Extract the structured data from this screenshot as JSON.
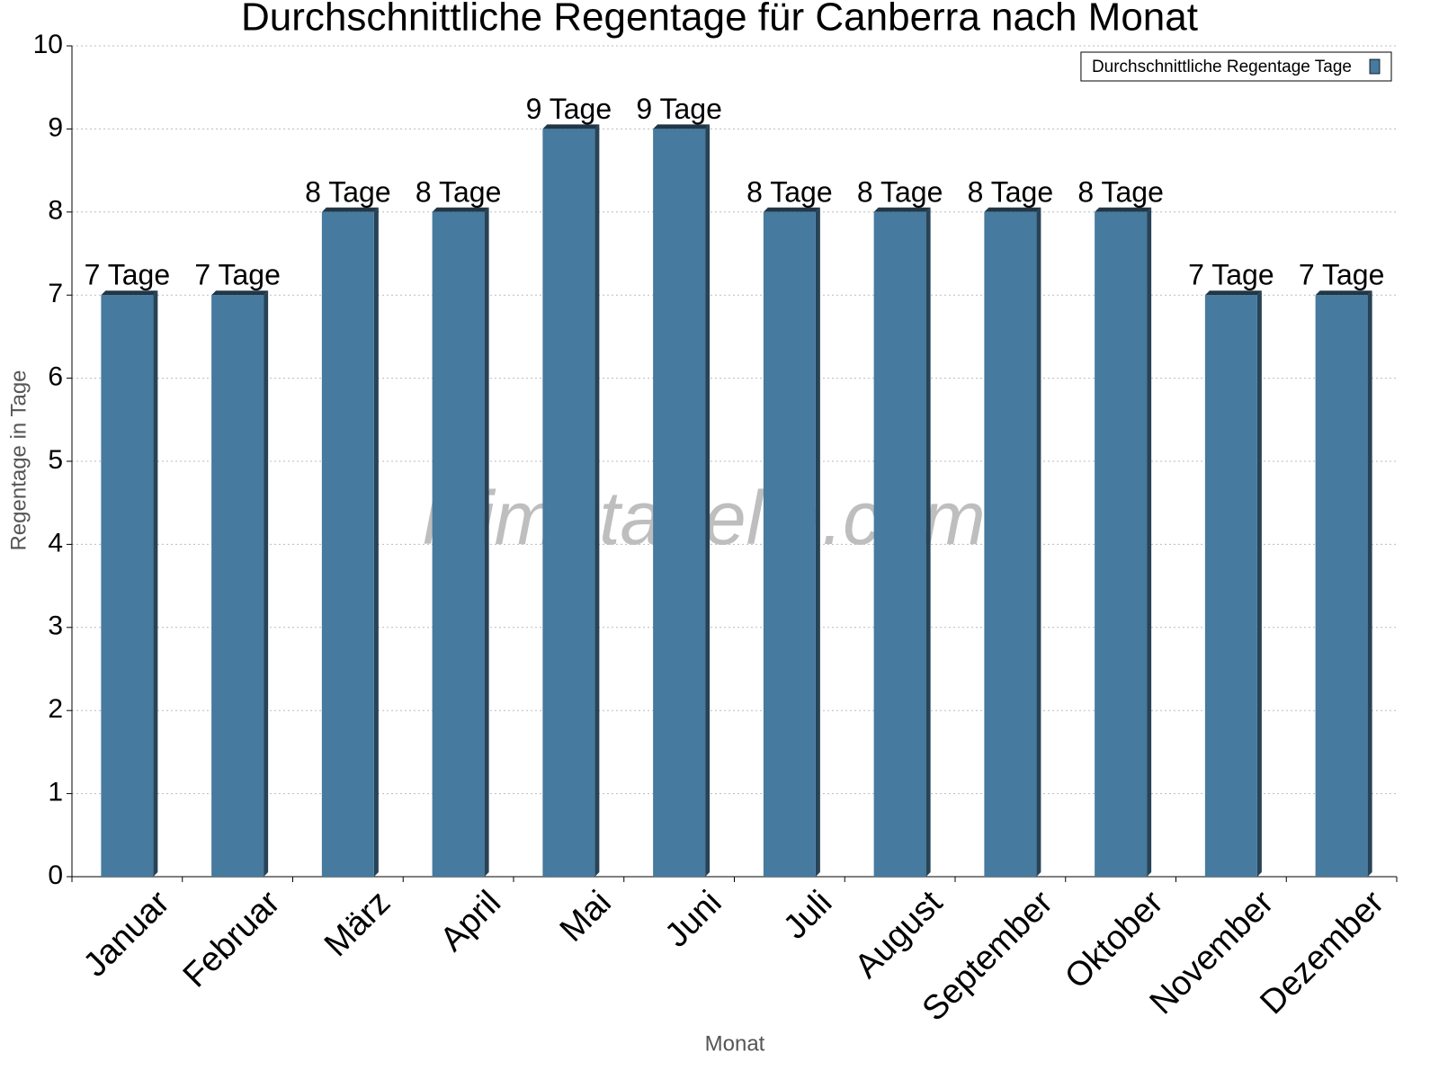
{
  "chart_data": {
    "type": "bar",
    "title": "Durchschnittliche Regentage für Canberra nach Monat",
    "x_label": "Monat",
    "y_label": "Regentage in Tage",
    "watermark": "klimatabelle.com",
    "categories": [
      "Januar",
      "Februar",
      "März",
      "April",
      "Mai",
      "Juni",
      "Juli",
      "August",
      "September",
      "Oktober",
      "November",
      "Dezember"
    ],
    "series": [
      {
        "name": "Durchschnittliche Regentage Tage",
        "color": "#467a9e",
        "values": [
          7,
          7,
          8,
          8,
          9,
          9,
          8,
          8,
          8,
          8,
          7,
          7
        ],
        "value_labels": [
          "7 Tage",
          "7 Tage",
          "8 Tage",
          "8 Tage",
          "9 Tage",
          "9 Tage",
          "8 Tage",
          "8 Tage",
          "8 Tage",
          "8 Tage",
          "7 Tage",
          "7 Tage"
        ]
      }
    ],
    "ylim": [
      0,
      10
    ],
    "yticks": [
      0,
      1,
      2,
      3,
      4,
      5,
      6,
      7,
      8,
      9,
      10
    ],
    "grid": true,
    "legend": "upper right"
  }
}
